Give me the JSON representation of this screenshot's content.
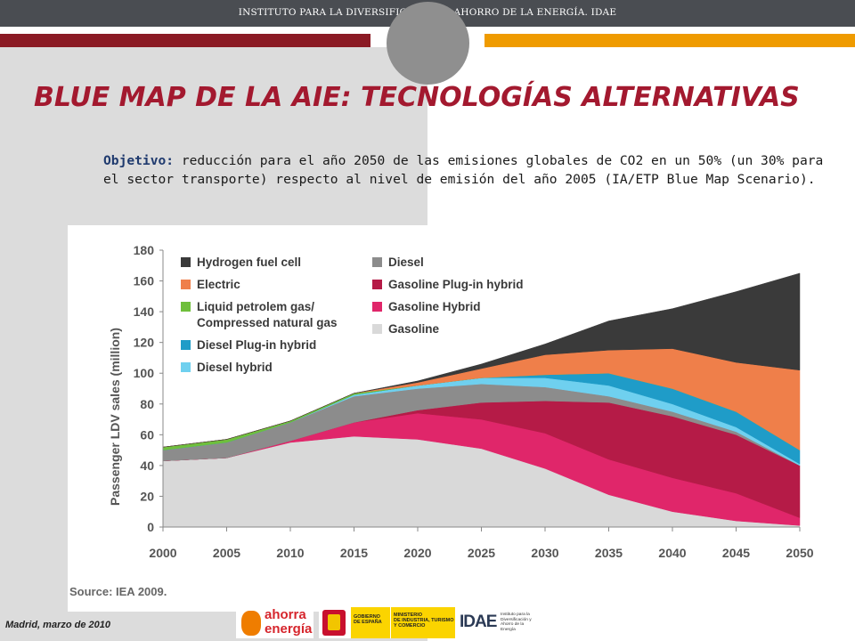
{
  "header": {
    "institute": "INSTITUTO PARA LA DIVERSIFICACIÓN Y AHORRO DE LA ENERGÍA. IDAE"
  },
  "slide": {
    "title": "BLUE MAP DE LA AIE: TECNOLOGÍAS ALTERNATIVAS",
    "objective_label": "Objetivo:",
    "objective_text": " reducción para el año 2050 de las emisiones globales de CO2 en un 50% (un 30% para el sector transporte) respecto al nivel de emisión del año 2005 (IA/ETP Blue Map Scenario)."
  },
  "footer": {
    "date": "Madrid, marzo de 2010",
    "logo_ahorra_line1": "ahorra",
    "logo_ahorra_line2": "energía",
    "logo_gob_line1": "GOBIERNO\nDE ESPAÑA",
    "logo_gob_line2": "MINISTERIO\nDE INDUSTRIA, TURISMO\nY COMERCIO",
    "logo_idae": "IDAE",
    "logo_idae_sub": "Instituto para la Diversificación y Ahorro de la Energía"
  },
  "chart_data": {
    "type": "area",
    "stacked": true,
    "source": "Source: IEA 2009.",
    "ylabel": "Passenger LDV sales (million)",
    "xlabel": "",
    "ylim": [
      0,
      180
    ],
    "yticks": [
      0,
      20,
      40,
      60,
      80,
      100,
      120,
      140,
      160,
      180
    ],
    "x": [
      "2000",
      "2005",
      "2010",
      "2015",
      "2020",
      "2025",
      "2030",
      "2035",
      "2040",
      "2045",
      "2050"
    ],
    "legend_position": "top-left",
    "legend": [
      {
        "label": "Hydrogen fuel cell",
        "color": "#3a3a3a"
      },
      {
        "label": "Electric",
        "color": "#ef7f4a"
      },
      {
        "label": "Liquid petrolem gas/\nCompressed natural gas",
        "color": "#6fbf3c"
      },
      {
        "label": "Diesel Plug-in hybrid",
        "color": "#1f9cc8"
      },
      {
        "label": "Diesel hybrid",
        "color": "#6fd0ef"
      },
      {
        "label": "Diesel",
        "color": "#8c8c8c"
      },
      {
        "label": "Gasoline Plug-in hybrid",
        "color": "#b51b47"
      },
      {
        "label": "Gasoline Hybrid",
        "color": "#e0266a"
      },
      {
        "label": "Gasoline",
        "color": "#d9d9d9"
      }
    ],
    "series": [
      {
        "name": "Gasoline",
        "color": "#d9d9d9",
        "values": [
          43,
          45,
          55,
          59,
          57,
          51,
          38,
          21,
          10,
          4,
          1
        ]
      },
      {
        "name": "Gasoline Hybrid",
        "color": "#e0266a",
        "values": [
          0,
          0,
          1,
          9,
          17,
          19,
          23,
          23,
          22,
          18,
          5
        ]
      },
      {
        "name": "Gasoline Plug-in hybrid",
        "color": "#b51b47",
        "values": [
          0,
          0,
          0,
          0,
          2,
          11,
          21,
          37,
          40,
          38,
          34
        ]
      },
      {
        "name": "Diesel",
        "color": "#8c8c8c",
        "values": [
          7,
          10,
          12,
          17,
          14,
          12,
          9,
          4,
          3,
          2,
          0
        ]
      },
      {
        "name": "Diesel hybrid",
        "color": "#6fd0ef",
        "values": [
          0,
          0,
          0,
          1,
          2,
          4,
          6,
          7,
          5,
          3,
          1
        ]
      },
      {
        "name": "Diesel Plug-in hybrid",
        "color": "#1f9cc8",
        "values": [
          0,
          0,
          0,
          0,
          0,
          0,
          2,
          8,
          10,
          10,
          9
        ]
      },
      {
        "name": "Liquid petrolem gas/\nCompressed natural gas",
        "color": "#6fbf3c",
        "values": [
          2,
          2,
          1,
          1,
          0,
          0,
          0,
          0,
          0,
          0,
          0
        ]
      },
      {
        "name": "Electric",
        "color": "#ef7f4a",
        "values": [
          0,
          0,
          0,
          0,
          2,
          6,
          13,
          15,
          26,
          32,
          52
        ]
      },
      {
        "name": "Hydrogen fuel cell",
        "color": "#3a3a3a",
        "values": [
          0,
          0,
          0,
          0,
          1,
          3,
          7,
          19,
          26,
          46,
          63
        ]
      }
    ]
  }
}
